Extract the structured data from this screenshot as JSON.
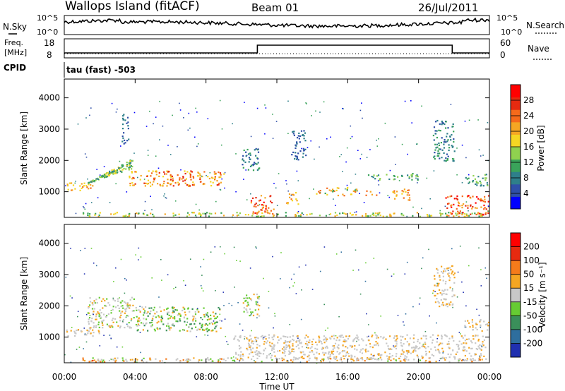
{
  "header": {
    "station": "Wallops Island (fitACF)",
    "beam": "Beam 01",
    "date": "26/Jul/2011"
  },
  "noise_panel": {
    "left_label": "N.Sky",
    "right_label": "N.Search",
    "left_ticks": [
      "10^5",
      "10^0"
    ],
    "right_ticks": [
      "10^5",
      "10^0"
    ]
  },
  "freq_panel": {
    "left_label_line1": "Freq.",
    "left_label_line2": "[MHz]",
    "right_label": "Nave",
    "left_ticks": [
      "18",
      "8"
    ],
    "right_ticks": [
      "60",
      "0"
    ],
    "step_start_hour": 10.9,
    "step_end_hour": 21.9
  },
  "cpid": {
    "label": "CPID",
    "value": "tau (fast) -503"
  },
  "chart_data": [
    {
      "type": "heatmap",
      "name": "power",
      "ylabel": "Slant Range [km]",
      "yticks": [
        "4000",
        "3000",
        "2000",
        "1000"
      ],
      "ylim": [
        180,
        4600
      ],
      "xlim": [
        0,
        24
      ],
      "colorbar_label": "Power [dB]",
      "colorbar_ticks": [
        "28",
        "24",
        "20",
        "16",
        "12",
        "8",
        "4"
      ],
      "colorbar_colors": [
        "#0000ff",
        "#2f4fa8",
        "#2e7f8a",
        "#3aa35a",
        "#8fd14f",
        "#f5d623",
        "#f5a623",
        "#f56a1b",
        "#e62a10",
        "#ff0000"
      ]
    },
    {
      "type": "heatmap",
      "name": "velocity",
      "ylabel": "Slant Range [km]",
      "yticks": [
        "4000",
        "3000",
        "2000",
        "1000"
      ],
      "ylim": [
        180,
        4600
      ],
      "xlim": [
        0,
        24
      ],
      "colorbar_label": "Velocity [m s⁻¹]",
      "colorbar_ticks": [
        "200",
        "100",
        "50",
        "15",
        "-15",
        "-50",
        "-100",
        "-200"
      ],
      "colorbar_colors": [
        "#2030b0",
        "#2e6e9e",
        "#3a8f5a",
        "#66cc33",
        "#c8c8c8",
        "#f5a623",
        "#f57b1b",
        "#e62a10",
        "#ff0000"
      ]
    }
  ],
  "x_axis": {
    "ticks": [
      "00:00",
      "04:00",
      "08:00",
      "12:00",
      "16:00",
      "20:00",
      "00:00"
    ],
    "label": "Time UT"
  }
}
